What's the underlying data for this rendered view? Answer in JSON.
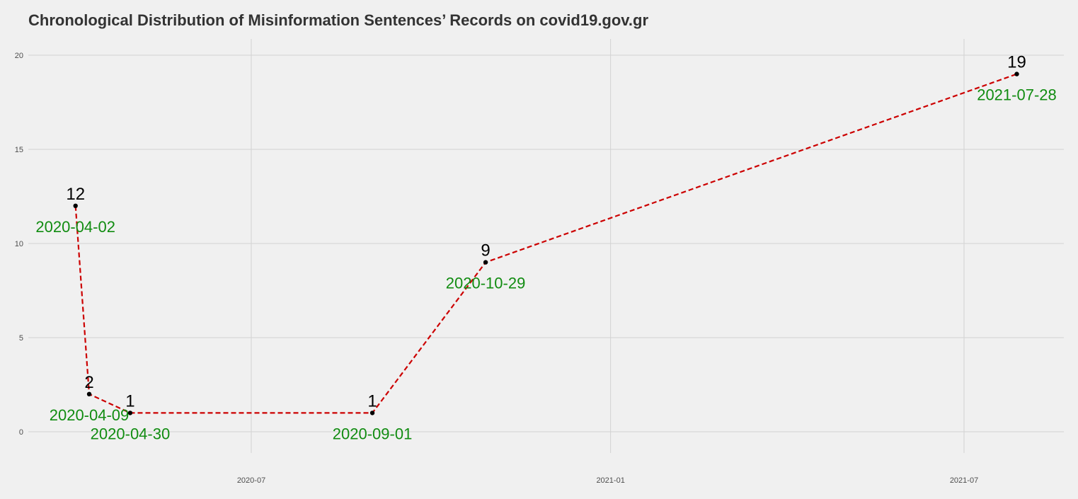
{
  "chart_data": {
    "type": "line",
    "title": "Chronological Distribution of Misinformation Sentences’ Records on covid19.gov.gr",
    "xlabel": "",
    "ylabel": "",
    "x_type": "date",
    "x_ticks": [
      "2020-07",
      "2021-01",
      "2021-07"
    ],
    "y_ticks": [
      0,
      5,
      10,
      15,
      20
    ],
    "ylim": [
      -2.5,
      21.5
    ],
    "grid": true,
    "legend": "none",
    "series": [
      {
        "x": [
          "2020-04-02",
          "2020-04-09",
          "2020-04-30",
          "2020-09-01",
          "2020-10-29",
          "2021-07-28"
        ],
        "y": [
          12,
          2,
          1,
          1,
          9,
          19
        ],
        "labels": [
          "12",
          "2",
          "1",
          "1",
          "9",
          "19"
        ],
        "date_labels": [
          "2020-04-02",
          "2020-04-09",
          "2020-04-30",
          "2020-09-01",
          "2020-10-29",
          "2021-07-28"
        ]
      }
    ]
  },
  "colors": {
    "background": "#f0f0f0",
    "grid": "#d2d2d2",
    "line": "#cc0000",
    "point": "#000000",
    "date_label": "#118c11",
    "value_label": "#000000",
    "title": "#333333",
    "tick": "#4d4d4d"
  }
}
